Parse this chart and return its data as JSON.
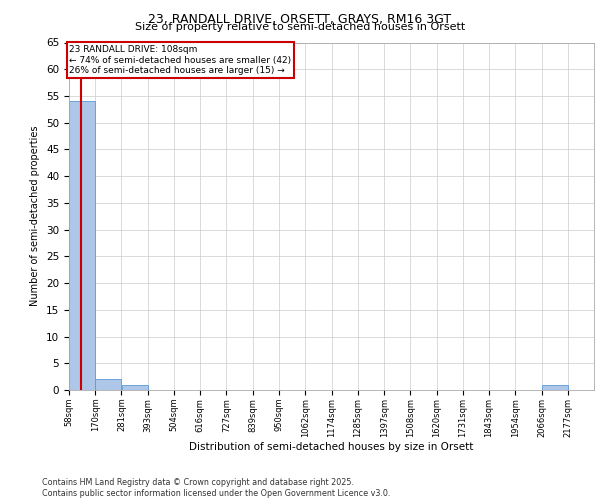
{
  "title1": "23, RANDALL DRIVE, ORSETT, GRAYS, RM16 3GT",
  "title2": "Size of property relative to semi-detached houses in Orsett",
  "xlabel": "Distribution of semi-detached houses by size in Orsett",
  "ylabel": "Number of semi-detached properties",
  "annotation_line1": "23 RANDALL DRIVE: 108sqm",
  "annotation_line2": "← 74% of semi-detached houses are smaller (42)",
  "annotation_line3": "26% of semi-detached houses are larger (15) →",
  "property_size": 108,
  "bar_edges": [
    58,
    170,
    281,
    393,
    504,
    616,
    727,
    839,
    950,
    1062,
    1174,
    1285,
    1397,
    1508,
    1620,
    1731,
    1843,
    1954,
    2066,
    2177,
    2289
  ],
  "bar_heights": [
    54,
    2,
    1,
    0,
    0,
    0,
    0,
    0,
    0,
    0,
    0,
    0,
    0,
    0,
    0,
    0,
    0,
    0,
    1,
    0,
    0
  ],
  "bar_color": "#aec6e8",
  "bar_edge_color": "#5a9bd4",
  "vline_color": "#cc0000",
  "vline_x": 108,
  "ylim": [
    0,
    65
  ],
  "yticks": [
    0,
    5,
    10,
    15,
    20,
    25,
    30,
    35,
    40,
    45,
    50,
    55,
    60,
    65
  ],
  "grid_color": "#cccccc",
  "footer_line1": "Contains HM Land Registry data © Crown copyright and database right 2025.",
  "footer_line2": "Contains public sector information licensed under the Open Government Licence v3.0.",
  "annotation_box_color": "#cc0000",
  "bg_color": "#ffffff"
}
